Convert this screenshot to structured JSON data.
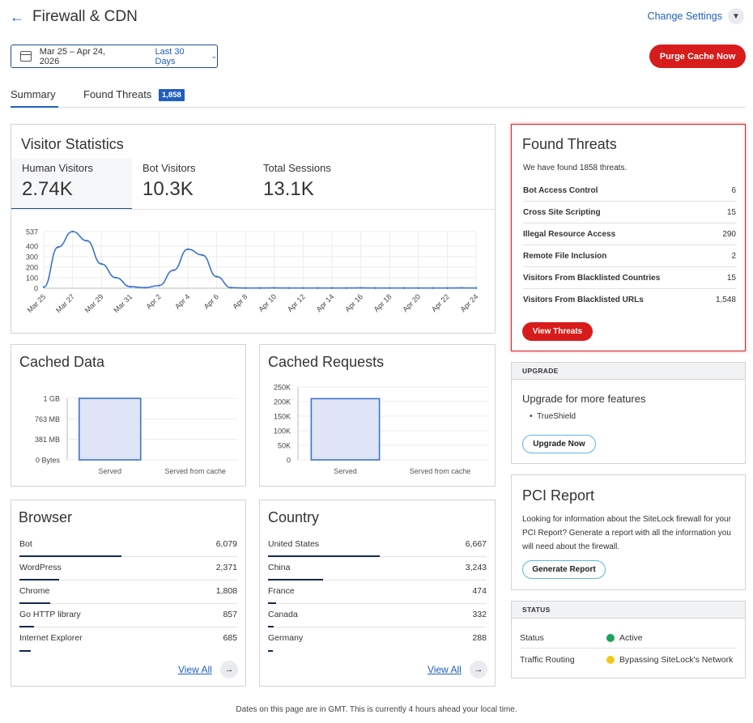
{
  "header": {
    "title": "Firewall & CDN",
    "change_settings": "Change Settings",
    "date_range": "Mar 25 – Apr 24, 2026",
    "range_preset": "Last 30 Days",
    "purge_label": "Purge Cache Now"
  },
  "tabs": [
    {
      "label": "Summary"
    },
    {
      "label": "Found Threats",
      "badge": "1,858"
    }
  ],
  "visitor_stats": {
    "title": "Visitor Statistics",
    "stats": [
      {
        "label": "Human Visitors",
        "value": "2.74K"
      },
      {
        "label": "Bot Visitors",
        "value": "10.3K"
      },
      {
        "label": "Total Sessions",
        "value": "13.1K"
      }
    ],
    "chart_data": {
      "type": "line",
      "x": [
        "Mar 25",
        "Mar 26",
        "Mar 27",
        "Mar 28",
        "Mar 29",
        "Mar 30",
        "Mar 31",
        "Apr 1",
        "Apr 2",
        "Apr 3",
        "Apr 4",
        "Apr 5",
        "Apr 6",
        "Apr 7",
        "Apr 8",
        "Apr 9",
        "Apr 10",
        "Apr 11",
        "Apr 12",
        "Apr 13",
        "Apr 14",
        "Apr 15",
        "Apr 16",
        "Apr 17",
        "Apr 18",
        "Apr 19",
        "Apr 20",
        "Apr 21",
        "Apr 22",
        "Apr 23",
        "Apr 24"
      ],
      "x_tick_labels": [
        "Mar 25",
        "Mar 27",
        "Mar 29",
        "Mar 31",
        "Apr 2",
        "Apr 4",
        "Apr 6",
        "Apr 8",
        "Apr 10",
        "Apr 12",
        "Apr 14",
        "Apr 16",
        "Apr 18",
        "Apr 20",
        "Apr 22",
        "Apr 24"
      ],
      "values": [
        10,
        390,
        537,
        450,
        230,
        100,
        15,
        5,
        25,
        170,
        370,
        315,
        110,
        5,
        2,
        2,
        3,
        2,
        2,
        2,
        2,
        2,
        3,
        2,
        2,
        2,
        2,
        2,
        2,
        3,
        2
      ],
      "y_ticks": [
        "537",
        "400",
        "300",
        "200",
        "100",
        "0"
      ],
      "ylim": [
        0,
        537
      ],
      "color": "#3a72d0"
    }
  },
  "cached_data": {
    "title": "Cached Data",
    "chart_data": {
      "type": "bar",
      "categories": [
        "Served",
        "Served from cache"
      ],
      "values": [
        1.0,
        0
      ],
      "y_ticks": [
        "1 GB",
        "763 MB",
        "381 MB",
        "0 Bytes"
      ],
      "ylim": [
        0,
        1.0
      ],
      "fill": "#dfe5f7",
      "stroke": "#3a72d0"
    }
  },
  "cached_requests": {
    "title": "Cached Requests",
    "chart_data": {
      "type": "bar",
      "categories": [
        "Served",
        "Served from cache"
      ],
      "values": [
        210000,
        0
      ],
      "y_ticks": [
        "250K",
        "200K",
        "150K",
        "100K",
        "50K",
        "0"
      ],
      "ylim": [
        0,
        250000
      ],
      "fill": "#dfe5f7",
      "stroke": "#3a72d0"
    }
  },
  "browser": {
    "title": "Browser",
    "view_all": "View All",
    "rows": [
      {
        "label": "Bot",
        "value": "6,079",
        "share": 1.0
      },
      {
        "label": "WordPress",
        "value": "2,371",
        "share": 0.39
      },
      {
        "label": "Chrome",
        "value": "1,808",
        "share": 0.3
      },
      {
        "label": "Go HTTP library",
        "value": "857",
        "share": 0.14
      },
      {
        "label": "Internet Explorer",
        "value": "685",
        "share": 0.11
      }
    ]
  },
  "country": {
    "title": "Country",
    "view_all": "View All",
    "rows": [
      {
        "label": "United States",
        "value": "6,667",
        "share": 1.0
      },
      {
        "label": "China",
        "value": "3,243",
        "share": 0.49
      },
      {
        "label": "France",
        "value": "474",
        "share": 0.07
      },
      {
        "label": "Canada",
        "value": "332",
        "share": 0.05
      },
      {
        "label": "Germany",
        "value": "288",
        "share": 0.04
      }
    ]
  },
  "found_threats": {
    "title": "Found Threats",
    "intro": "We have found 1858 threats.",
    "rows": [
      {
        "label": "Bot Access Control",
        "value": "6"
      },
      {
        "label": "Cross Site Scripting",
        "value": "15"
      },
      {
        "label": "Illegal Resource Access",
        "value": "290"
      },
      {
        "label": "Remote File Inclusion",
        "value": "2"
      },
      {
        "label": "Visitors From Blacklisted Countries",
        "value": "15"
      },
      {
        "label": "Visitors From Blacklisted URLs",
        "value": "1,548"
      }
    ],
    "button": "View Threats"
  },
  "upgrade": {
    "header": "UPGRADE",
    "title": "Upgrade for more features",
    "items": [
      "TrueShield"
    ],
    "button": "Upgrade Now"
  },
  "pci": {
    "title": "PCI Report",
    "description": "Looking for information about the SiteLock firewall for your PCI Report? Generate a report with all the information you will need about the firewall.",
    "button": "Generate Report"
  },
  "status": {
    "header": "STATUS",
    "rows": [
      {
        "label": "Status",
        "value": "Active",
        "color": "#1aa35a"
      },
      {
        "label": "Traffic Routing",
        "value": "Bypassing SiteLock's Network",
        "color": "#f2c81a"
      }
    ]
  },
  "footer": "Dates on this page are in GMT. This is currently 4 hours ahead your local time."
}
